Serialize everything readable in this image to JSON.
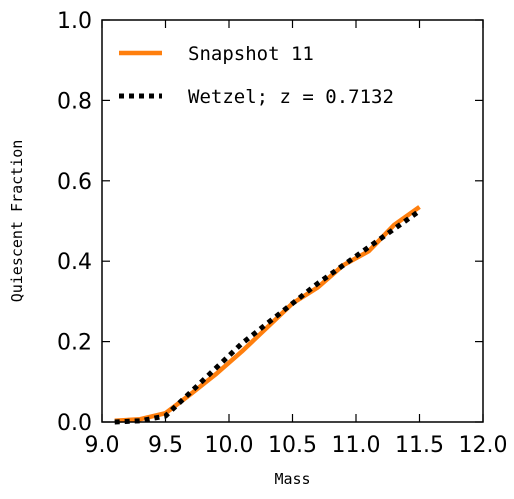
{
  "chart_data": {
    "type": "line",
    "xlabel": "Mass",
    "ylabel": "Quiescent Fraction",
    "xlim": [
      9.0,
      12.0
    ],
    "ylim": [
      0.0,
      1.0
    ],
    "xticks": [
      "9.0",
      "9.5",
      "10.0",
      "10.5",
      "11.0",
      "11.5",
      "12.0"
    ],
    "yticks": [
      "0.0",
      "0.2",
      "0.4",
      "0.6",
      "0.8",
      "1.0"
    ],
    "grid": false,
    "legend_position": "top-left",
    "series": [
      {
        "name": "Snapshot 11",
        "color": "#ff7f0e",
        "style": "solid",
        "x": [
          9.1,
          9.3,
          9.5,
          9.7,
          9.9,
          10.1,
          10.3,
          10.5,
          10.7,
          10.9,
          11.1,
          11.3,
          11.5
        ],
        "y": [
          0.003,
          0.007,
          0.022,
          0.07,
          0.12,
          0.175,
          0.235,
          0.295,
          0.335,
          0.39,
          0.425,
          0.49,
          0.535
        ]
      },
      {
        "name": "Wetzel; z = 0.7132",
        "color": "#000000",
        "style": "dotted",
        "x": [
          9.1,
          9.3,
          9.5,
          9.7,
          9.9,
          10.1,
          10.3,
          10.5,
          10.7,
          10.9,
          11.1,
          11.3,
          11.5
        ],
        "y": [
          0.0,
          0.003,
          0.015,
          0.075,
          0.135,
          0.195,
          0.245,
          0.295,
          0.345,
          0.39,
          0.435,
          0.48,
          0.525
        ]
      }
    ]
  }
}
